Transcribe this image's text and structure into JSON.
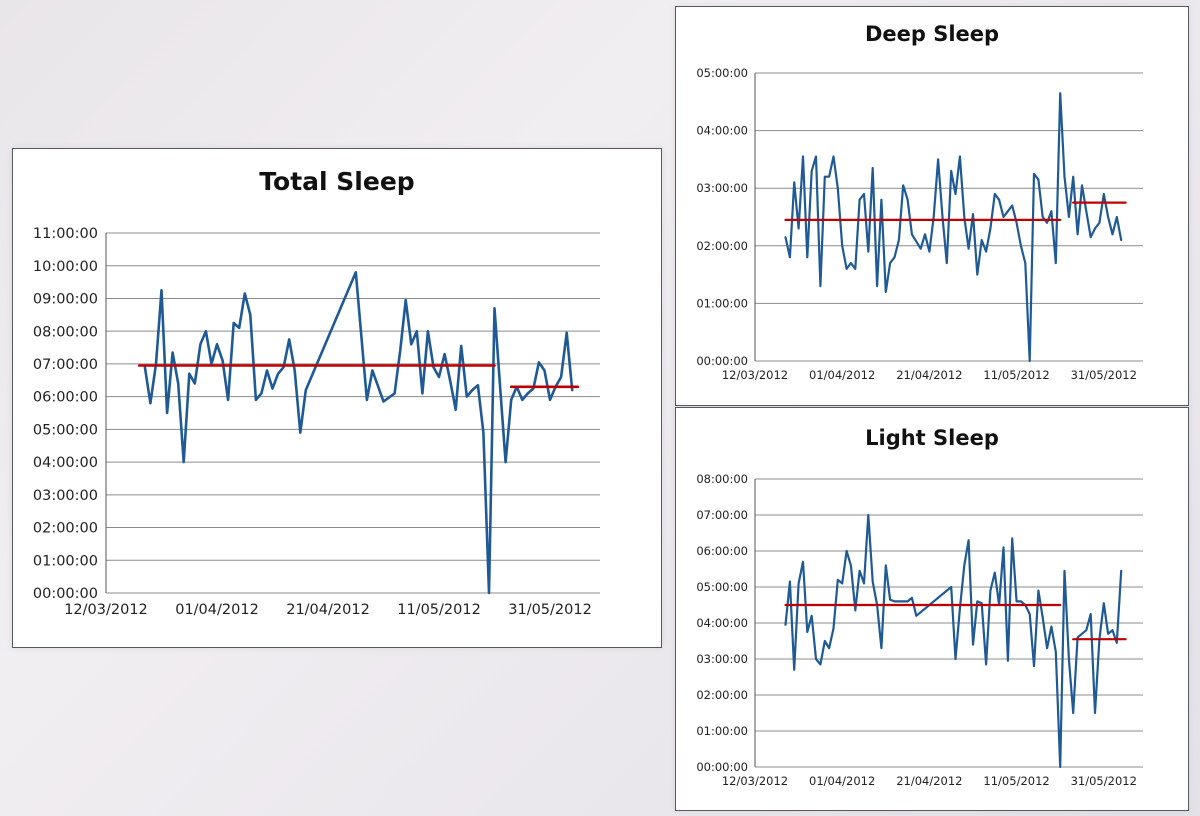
{
  "chart_data": [
    {
      "type": "line",
      "title": "Total Sleep",
      "xlabel": "",
      "ylabel": "",
      "y_unit": "hours",
      "x_tick_labels": [
        "12/03/2012",
        "01/04/2012",
        "21/04/2012",
        "11/05/2012",
        "31/05/2012"
      ],
      "y_tick_labels": [
        "00:00:00",
        "01:00:00",
        "02:00:00",
        "03:00:00",
        "04:00:00",
        "05:00:00",
        "06:00:00",
        "07:00:00",
        "08:00:00",
        "09:00:00",
        "10:00:00",
        "11:00:00"
      ],
      "xlim": [
        "2012-03-12",
        "2012-06-09"
      ],
      "ylim": [
        0,
        11
      ],
      "grid": true,
      "legend": "none",
      "colors": {
        "series": "#1f5a96",
        "average": "#c00000",
        "grid": "#8c8c8c"
      },
      "series": [
        {
          "role": "nightly",
          "x": [
            "2012-03-19",
            "2012-03-20",
            "2012-03-21",
            "2012-03-22",
            "2012-03-23",
            "2012-03-24",
            "2012-03-25",
            "2012-03-26",
            "2012-03-27",
            "2012-03-28",
            "2012-03-29",
            "2012-03-30",
            "2012-03-31",
            "2012-04-01",
            "2012-04-02",
            "2012-04-03",
            "2012-04-04",
            "2012-04-05",
            "2012-04-06",
            "2012-04-07",
            "2012-04-08",
            "2012-04-09",
            "2012-04-10",
            "2012-04-11",
            "2012-04-12",
            "2012-04-13",
            "2012-04-14",
            "2012-04-15",
            "2012-04-16",
            "2012-04-17",
            "2012-04-26",
            "2012-04-28",
            "2012-04-29",
            "2012-05-01",
            "2012-05-03",
            "2012-05-04",
            "2012-05-05",
            "2012-05-06",
            "2012-05-07",
            "2012-05-08",
            "2012-05-09",
            "2012-05-10",
            "2012-05-11",
            "2012-05-12",
            "2012-05-13",
            "2012-05-14",
            "2012-05-15",
            "2012-05-16",
            "2012-05-17",
            "2012-05-18",
            "2012-05-19",
            "2012-05-20",
            "2012-05-21",
            "2012-05-22",
            "2012-05-23",
            "2012-05-24",
            "2012-05-25",
            "2012-05-26",
            "2012-05-27",
            "2012-05-28",
            "2012-05-29",
            "2012-05-30",
            "2012-05-31",
            "2012-06-01",
            "2012-06-02",
            "2012-06-03",
            "2012-06-04"
          ],
          "values": [
            6.9,
            5.8,
            7.0,
            9.25,
            5.5,
            7.35,
            6.4,
            4.0,
            6.7,
            6.4,
            7.6,
            8.0,
            7.0,
            7.6,
            7.1,
            5.9,
            8.25,
            8.1,
            9.15,
            8.5,
            5.9,
            6.1,
            6.8,
            6.25,
            6.7,
            6.9,
            7.75,
            6.8,
            4.9,
            6.2,
            9.8,
            5.9,
            6.8,
            5.85,
            6.1,
            7.4,
            8.95,
            7.6,
            8.0,
            6.1,
            8.0,
            6.9,
            6.6,
            7.3,
            6.5,
            5.6,
            7.55,
            6.0,
            6.2,
            6.35,
            4.9,
            0.0,
            8.7,
            6.3,
            4.0,
            5.9,
            6.3,
            5.9,
            6.1,
            6.25,
            7.05,
            6.8,
            5.9,
            6.3,
            6.6,
            7.95,
            6.2
          ]
        },
        {
          "role": "average",
          "x": [
            "2012-03-18",
            "2012-05-21"
          ],
          "values": [
            6.95,
            6.95
          ]
        },
        {
          "role": "average",
          "x": [
            "2012-05-24",
            "2012-06-05"
          ],
          "values": [
            6.3,
            6.3
          ]
        }
      ]
    },
    {
      "type": "line",
      "title": "Deep Sleep",
      "xlabel": "",
      "ylabel": "",
      "y_unit": "hours",
      "x_tick_labels": [
        "12/03/2012",
        "01/04/2012",
        "21/04/2012",
        "11/05/2012",
        "31/05/2012"
      ],
      "y_tick_labels": [
        "00:00:00",
        "01:00:00",
        "02:00:00",
        "03:00:00",
        "04:00:00",
        "05:00:00"
      ],
      "xlim": [
        "2012-03-12",
        "2012-06-09"
      ],
      "ylim": [
        0,
        5
      ],
      "grid": true,
      "legend": "none",
      "colors": {
        "series": "#1f5a96",
        "average": "#c00000",
        "grid": "#8c8c8c"
      },
      "series": [
        {
          "role": "nightly",
          "x": [
            "2012-03-19",
            "2012-03-20",
            "2012-03-21",
            "2012-03-22",
            "2012-03-23",
            "2012-03-24",
            "2012-03-25",
            "2012-03-26",
            "2012-03-27",
            "2012-03-28",
            "2012-03-29",
            "2012-03-30",
            "2012-03-31",
            "2012-04-01",
            "2012-04-02",
            "2012-04-03",
            "2012-04-04",
            "2012-04-05",
            "2012-04-06",
            "2012-04-07",
            "2012-04-08",
            "2012-04-09",
            "2012-04-10",
            "2012-04-11",
            "2012-04-12",
            "2012-04-13",
            "2012-04-14",
            "2012-04-15",
            "2012-04-16",
            "2012-04-17",
            "2012-04-19",
            "2012-04-20",
            "2012-04-21",
            "2012-04-22",
            "2012-04-23",
            "2012-04-24",
            "2012-04-25",
            "2012-04-26",
            "2012-04-27",
            "2012-04-28",
            "2012-04-29",
            "2012-04-30",
            "2012-05-01",
            "2012-05-02",
            "2012-05-03",
            "2012-05-04",
            "2012-05-05",
            "2012-05-06",
            "2012-05-07",
            "2012-05-08",
            "2012-05-09",
            "2012-05-10",
            "2012-05-11",
            "2012-05-12",
            "2012-05-13",
            "2012-05-14",
            "2012-05-15",
            "2012-05-16",
            "2012-05-17",
            "2012-05-18",
            "2012-05-19",
            "2012-05-20",
            "2012-05-21",
            "2012-05-22",
            "2012-05-23",
            "2012-05-24",
            "2012-05-25",
            "2012-05-26",
            "2012-05-27",
            "2012-05-28",
            "2012-05-29",
            "2012-05-30",
            "2012-05-31",
            "2012-06-01",
            "2012-06-02",
            "2012-06-03",
            "2012-06-04"
          ],
          "values": [
            2.15,
            1.8,
            3.1,
            2.3,
            3.55,
            1.8,
            3.3,
            3.55,
            1.3,
            3.2,
            3.2,
            3.55,
            3.0,
            2.0,
            1.6,
            1.7,
            1.6,
            2.8,
            2.9,
            1.9,
            3.35,
            1.3,
            2.8,
            1.2,
            1.7,
            1.8,
            2.1,
            3.05,
            2.8,
            2.2,
            1.95,
            2.2,
            1.9,
            2.5,
            3.5,
            2.5,
            1.7,
            3.3,
            2.9,
            3.55,
            2.5,
            1.95,
            2.55,
            1.5,
            2.1,
            1.9,
            2.3,
            2.9,
            2.8,
            2.5,
            2.6,
            2.7,
            2.4,
            2.0,
            1.7,
            0.0,
            3.25,
            3.15,
            2.5,
            2.4,
            2.6,
            1.7,
            4.65,
            3.2,
            2.5,
            3.2,
            2.2,
            3.05,
            2.6,
            2.15,
            2.3,
            2.4,
            2.9,
            2.5,
            2.2,
            2.5,
            2.1
          ]
        },
        {
          "role": "average",
          "x": [
            "2012-03-19",
            "2012-05-21"
          ],
          "values": [
            2.45,
            2.45
          ]
        },
        {
          "role": "average",
          "x": [
            "2012-05-24",
            "2012-06-05"
          ],
          "values": [
            2.75,
            2.75
          ]
        }
      ]
    },
    {
      "type": "line",
      "title": "Light Sleep",
      "xlabel": "",
      "ylabel": "",
      "y_unit": "hours",
      "x_tick_labels": [
        "12/03/2012",
        "01/04/2012",
        "21/04/2012",
        "11/05/2012",
        "31/05/2012"
      ],
      "y_tick_labels": [
        "00:00:00",
        "01:00:00",
        "02:00:00",
        "03:00:00",
        "04:00:00",
        "05:00:00",
        "06:00:00",
        "07:00:00",
        "08:00:00"
      ],
      "xlim": [
        "2012-03-12",
        "2012-06-09"
      ],
      "ylim": [
        0,
        8
      ],
      "grid": true,
      "legend": "none",
      "colors": {
        "series": "#1f5a96",
        "average": "#c00000",
        "grid": "#8c8c8c"
      },
      "series": [
        {
          "role": "nightly",
          "x": [
            "2012-03-19",
            "2012-03-20",
            "2012-03-21",
            "2012-03-22",
            "2012-03-23",
            "2012-03-24",
            "2012-03-25",
            "2012-03-26",
            "2012-03-27",
            "2012-03-28",
            "2012-03-29",
            "2012-03-30",
            "2012-03-31",
            "2012-04-01",
            "2012-04-02",
            "2012-04-03",
            "2012-04-04",
            "2012-04-05",
            "2012-04-06",
            "2012-04-07",
            "2012-04-08",
            "2012-04-09",
            "2012-04-10",
            "2012-04-11",
            "2012-04-12",
            "2012-04-13",
            "2012-04-14",
            "2012-04-15",
            "2012-04-16",
            "2012-04-17",
            "2012-04-18",
            "2012-04-26",
            "2012-04-27",
            "2012-04-28",
            "2012-04-29",
            "2012-04-30",
            "2012-05-01",
            "2012-05-02",
            "2012-05-03",
            "2012-05-04",
            "2012-05-05",
            "2012-05-06",
            "2012-05-07",
            "2012-05-08",
            "2012-05-09",
            "2012-05-10",
            "2012-05-11",
            "2012-05-12",
            "2012-05-13",
            "2012-05-14",
            "2012-05-15",
            "2012-05-16",
            "2012-05-17",
            "2012-05-18",
            "2012-05-19",
            "2012-05-20",
            "2012-05-21",
            "2012-05-22",
            "2012-05-23",
            "2012-05-24",
            "2012-05-25",
            "2012-05-26",
            "2012-05-27",
            "2012-05-28",
            "2012-05-29",
            "2012-05-30",
            "2012-05-31",
            "2012-06-01",
            "2012-06-02",
            "2012-06-03",
            "2012-06-04"
          ],
          "values": [
            3.95,
            5.15,
            2.7,
            5.1,
            5.7,
            3.75,
            4.2,
            3.0,
            2.85,
            3.5,
            3.3,
            3.85,
            5.2,
            5.1,
            6.0,
            5.6,
            4.35,
            5.45,
            5.1,
            7.0,
            5.15,
            4.5,
            3.3,
            5.6,
            4.65,
            4.6,
            4.6,
            4.6,
            4.6,
            4.7,
            4.2,
            5.0,
            3.0,
            4.4,
            5.6,
            6.3,
            3.4,
            4.6,
            4.55,
            2.85,
            4.9,
            5.4,
            4.5,
            6.1,
            2.95,
            6.35,
            4.6,
            4.6,
            4.5,
            4.25,
            2.8,
            4.9,
            4.15,
            3.3,
            3.9,
            3.2,
            0.0,
            5.45,
            3.0,
            1.5,
            3.6,
            3.7,
            3.8,
            4.25,
            1.5,
            3.55,
            4.55,
            3.7,
            3.8,
            3.45,
            5.45
          ]
        },
        {
          "role": "average",
          "x": [
            "2012-03-19",
            "2012-05-21"
          ],
          "values": [
            4.5,
            4.5
          ]
        },
        {
          "role": "average",
          "x": [
            "2012-05-24",
            "2012-06-05"
          ],
          "values": [
            3.55,
            3.55
          ]
        }
      ]
    }
  ]
}
